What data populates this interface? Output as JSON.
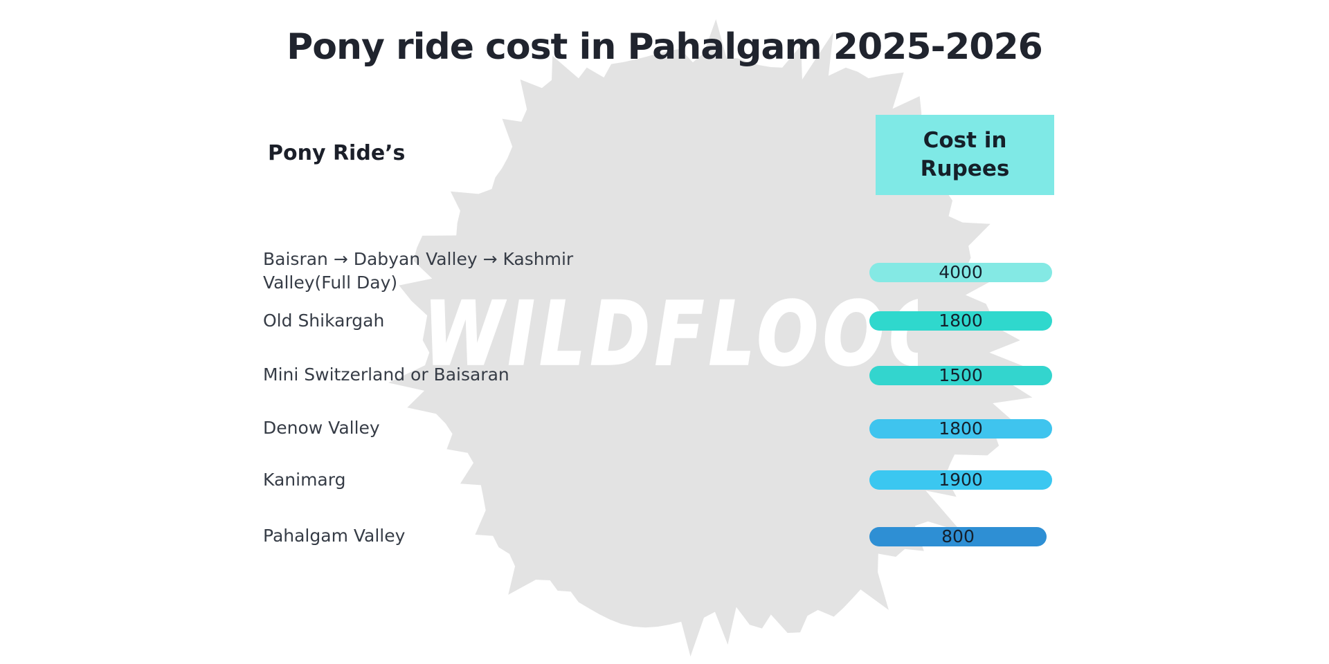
{
  "title": "Pony ride cost in Pahalgam 2025-2026",
  "table": {
    "rides_header": "Pony Ride’s",
    "cost_header": "Cost in\nRupees",
    "rows": [
      {
        "label": "Baisran → Dabyan Valley → Kashmir Valley(Full Day)",
        "value": "4000",
        "color": "#84E9E4"
      },
      {
        "label": "Old Shikargah",
        "value": "1800",
        "color": "#2FD8CD"
      },
      {
        "label": "Mini Switzerland or Baisaran",
        "value": "1500",
        "color": "#33D5CE"
      },
      {
        "label": "Denow Valley",
        "value": "1800",
        "color": "#3FC4EE"
      },
      {
        "label": "Kanimarg",
        "value": "1900",
        "color": "#3BC7F0"
      },
      {
        "label": "Pahalgam Valley",
        "value": "800",
        "color": "#2E8FD4"
      }
    ]
  },
  "watermark": {
    "text": "WILDFLOO",
    "partial_letter": "O"
  },
  "colors": {
    "cost_header_box": "#7FE9E6",
    "splash_blob": "#E3E3E3",
    "title_text": "#20242e",
    "label_text": "#363c46"
  },
  "chart_data": {
    "type": "table",
    "title": "Pony ride cost in Pahalgam 2025-2026",
    "columns": [
      "Pony Ride’s",
      "Cost in Rupees"
    ],
    "categories": [
      "Baisran → Dabyan Valley → Kashmir Valley(Full Day)",
      "Old Shikargah",
      "Mini Switzerland or Baisaran",
      "Denow Valley",
      "Kanimarg",
      "Pahalgam Valley"
    ],
    "values": [
      4000,
      1800,
      1500,
      1800,
      1900,
      800
    ],
    "unit": "Rupees (INR)",
    "legend_position": "none",
    "grid": false
  }
}
